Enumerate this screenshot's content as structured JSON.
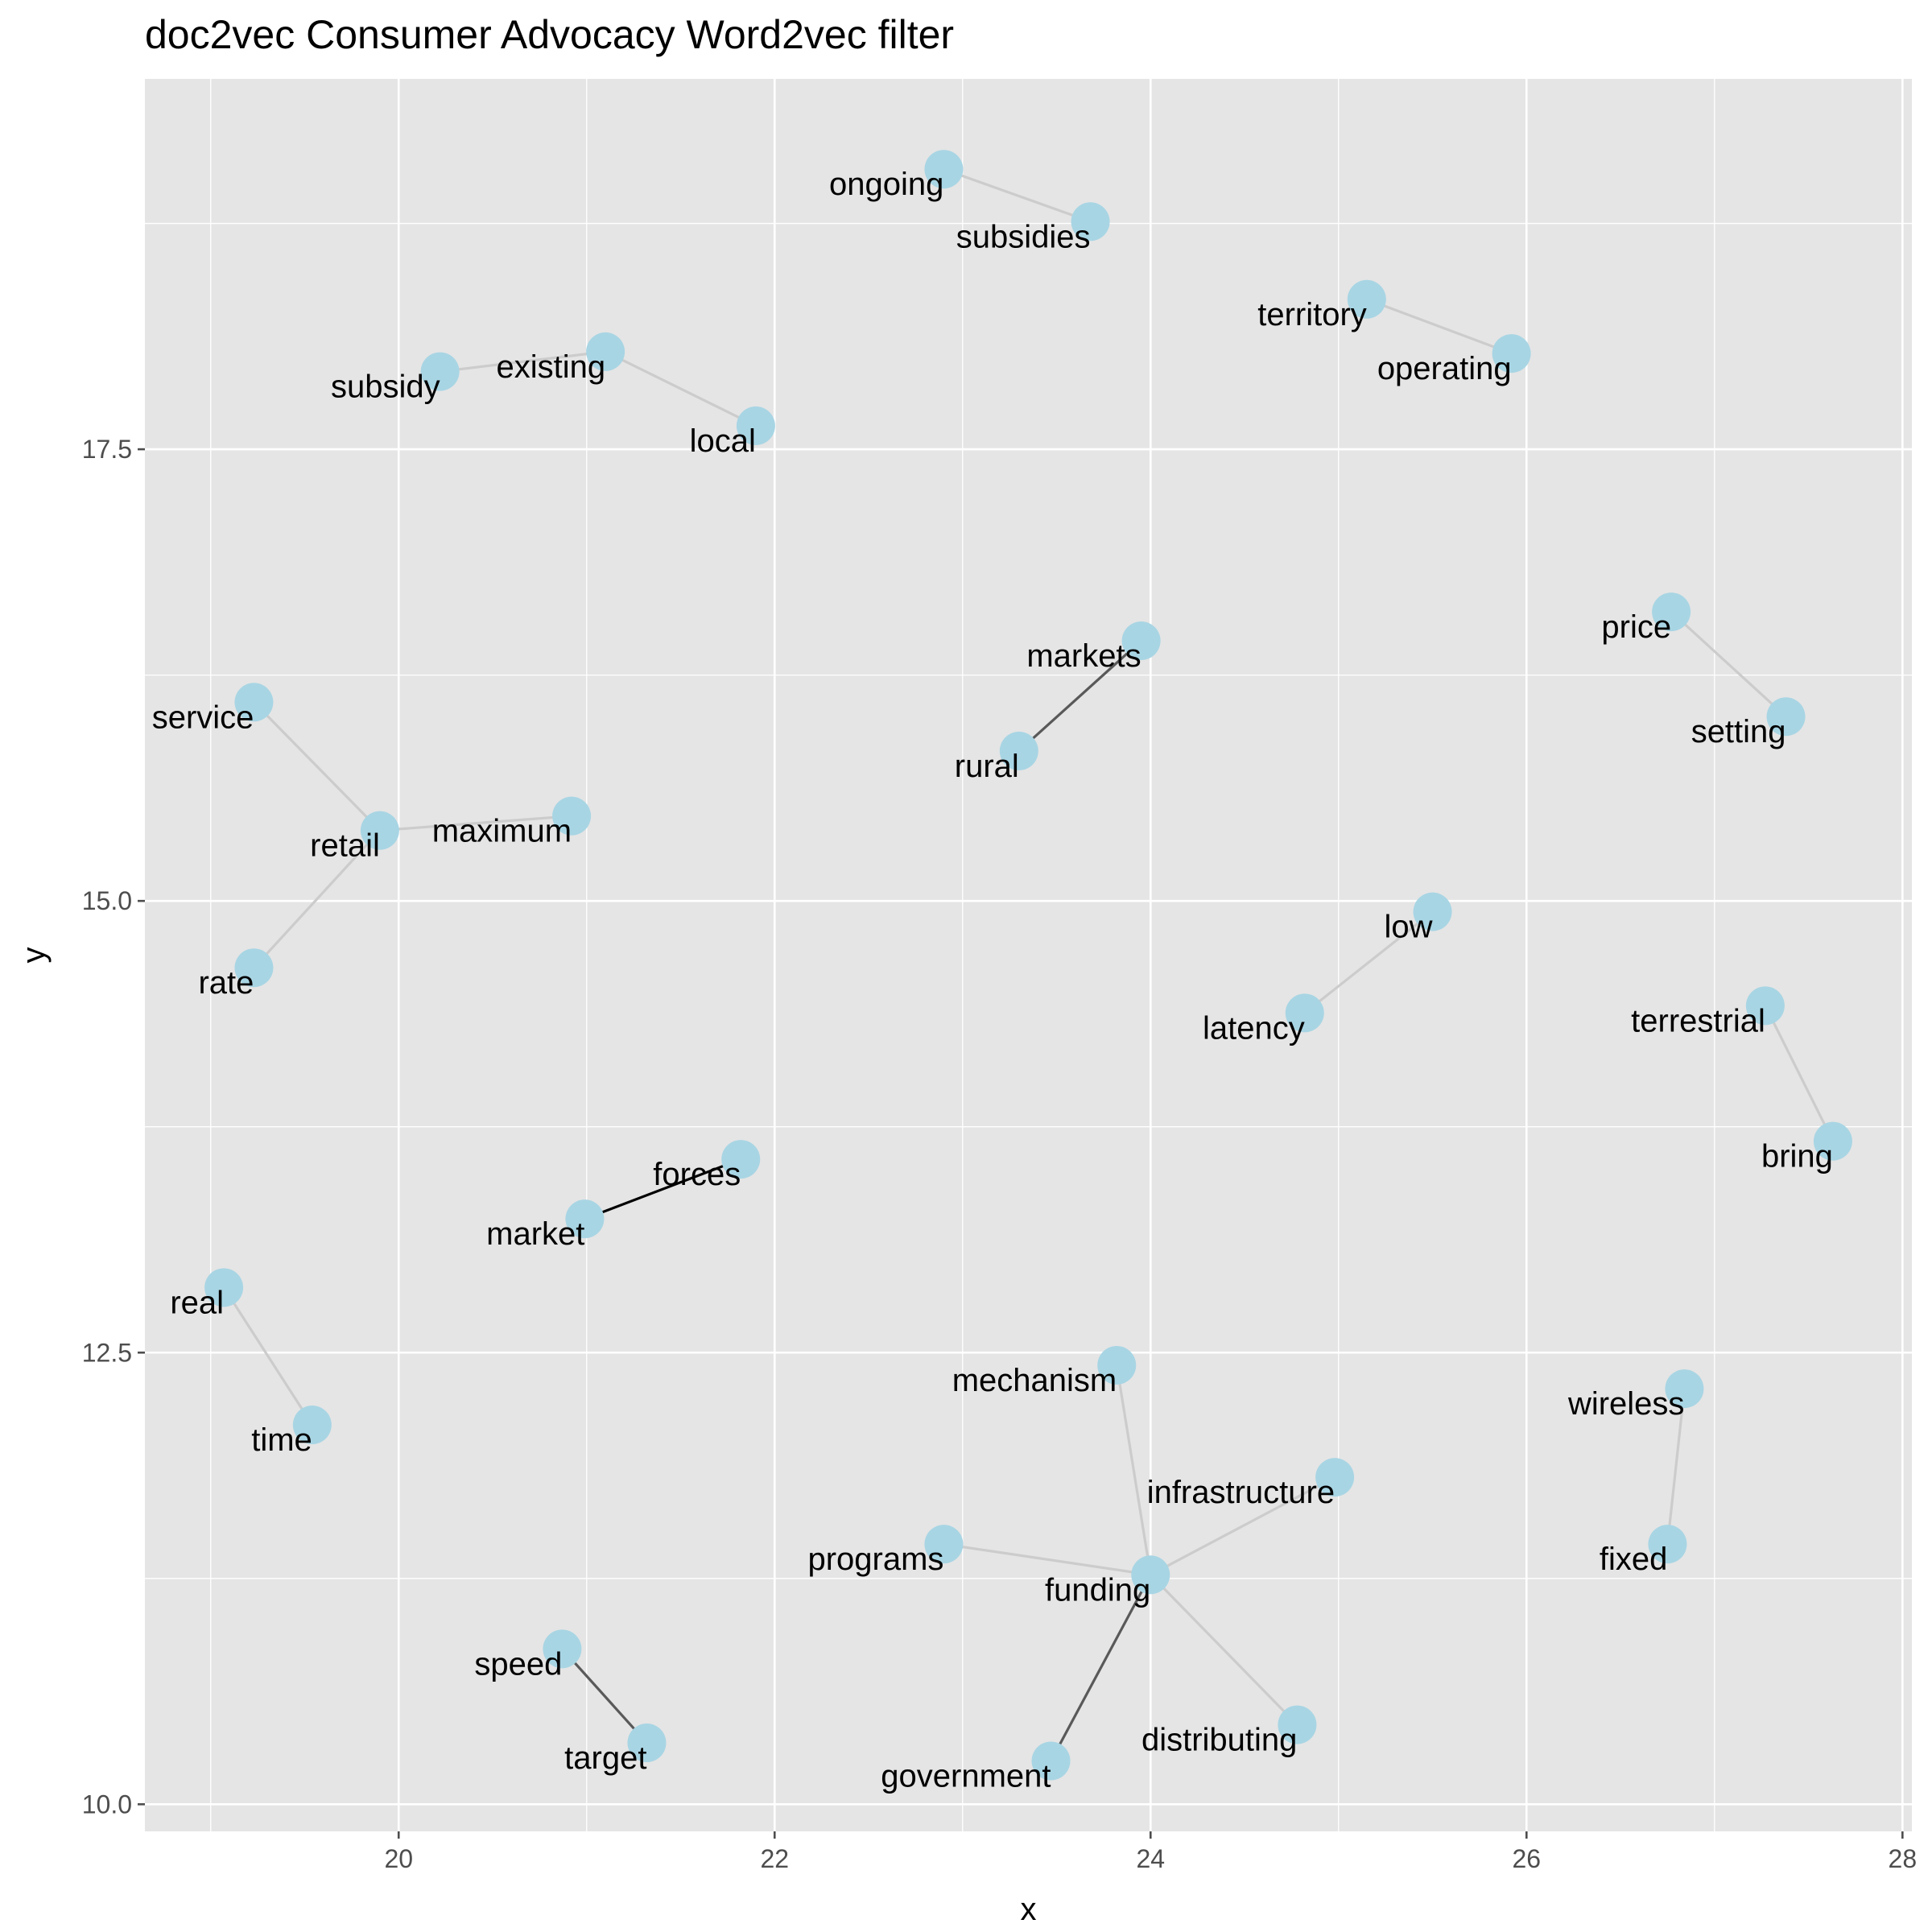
{
  "chart_data": {
    "type": "scatter",
    "title": "doc2vec Consumer Advocacy Word2vec filter",
    "xlabel": "x",
    "ylabel": "y",
    "xlim": [
      18.65,
      28.05
    ],
    "ylim": [
      9.85,
      19.55
    ],
    "x_ticks": [
      20,
      22,
      24,
      26,
      28
    ],
    "y_ticks": [
      10.0,
      12.5,
      15.0,
      17.5
    ],
    "x_tick_labels": [
      "20",
      "22",
      "24",
      "26",
      "28"
    ],
    "y_tick_labels": [
      "10.0",
      "12.5",
      "15.0",
      "17.5"
    ],
    "grid": true,
    "legend": "none",
    "colors": {
      "panel": "#e5e5e5",
      "grid": "#ffffff",
      "point": "#a8d5e4",
      "tick": "#4d4d4d"
    },
    "points": [
      {
        "label": "ongoing",
        "x": 22.9,
        "y": 19.05
      },
      {
        "label": "subsidies",
        "x": 23.68,
        "y": 18.76
      },
      {
        "label": "territory",
        "x": 25.15,
        "y": 18.33
      },
      {
        "label": "operating",
        "x": 25.92,
        "y": 18.03
      },
      {
        "label": "subsidy",
        "x": 20.22,
        "y": 17.93
      },
      {
        "label": "existing",
        "x": 21.1,
        "y": 18.04
      },
      {
        "label": "local",
        "x": 21.9,
        "y": 17.63
      },
      {
        "label": "markets",
        "x": 23.95,
        "y": 16.44
      },
      {
        "label": "rural",
        "x": 23.3,
        "y": 15.83
      },
      {
        "label": "price",
        "x": 26.77,
        "y": 16.6
      },
      {
        "label": "setting",
        "x": 27.38,
        "y": 16.02
      },
      {
        "label": "service",
        "x": 19.23,
        "y": 16.1
      },
      {
        "label": "retail",
        "x": 19.9,
        "y": 15.39
      },
      {
        "label": "maximum",
        "x": 20.92,
        "y": 15.47
      },
      {
        "label": "rate",
        "x": 19.23,
        "y": 14.63
      },
      {
        "label": "low",
        "x": 25.5,
        "y": 14.94
      },
      {
        "label": "latency",
        "x": 24.82,
        "y": 14.38
      },
      {
        "label": "terrestrial",
        "x": 27.27,
        "y": 14.42
      },
      {
        "label": "bring",
        "x": 27.63,
        "y": 13.67
      },
      {
        "label": "forces",
        "x": 21.82,
        "y": 13.57
      },
      {
        "label": "market",
        "x": 20.99,
        "y": 13.24
      },
      {
        "label": "real",
        "x": 19.07,
        "y": 12.86
      },
      {
        "label": "time",
        "x": 19.54,
        "y": 12.1
      },
      {
        "label": "mechanism",
        "x": 23.82,
        "y": 12.43
      },
      {
        "label": "wireless",
        "x": 26.84,
        "y": 12.3
      },
      {
        "label": "infrastructure",
        "x": 24.98,
        "y": 11.81
      },
      {
        "label": "fixed",
        "x": 26.75,
        "y": 11.44
      },
      {
        "label": "programs",
        "x": 22.9,
        "y": 11.44
      },
      {
        "label": "funding",
        "x": 24.0,
        "y": 11.27
      },
      {
        "label": "speed",
        "x": 20.87,
        "y": 10.86
      },
      {
        "label": "target",
        "x": 21.32,
        "y": 10.34
      },
      {
        "label": "distributing",
        "x": 24.78,
        "y": 10.44
      },
      {
        "label": "government",
        "x": 23.47,
        "y": 10.24
      }
    ],
    "edges": [
      {
        "from": "ongoing",
        "to": "subsidies",
        "color": "#cccccc"
      },
      {
        "from": "territory",
        "to": "operating",
        "color": "#cccccc"
      },
      {
        "from": "subsidy",
        "to": "existing",
        "color": "#cccccc"
      },
      {
        "from": "existing",
        "to": "local",
        "color": "#cccccc"
      },
      {
        "from": "rural",
        "to": "markets",
        "color": "#595959"
      },
      {
        "from": "price",
        "to": "setting",
        "color": "#cccccc"
      },
      {
        "from": "service",
        "to": "retail",
        "color": "#cccccc"
      },
      {
        "from": "retail",
        "to": "maximum",
        "color": "#cccccc"
      },
      {
        "from": "retail",
        "to": "rate",
        "color": "#cccccc"
      },
      {
        "from": "latency",
        "to": "low",
        "color": "#cccccc"
      },
      {
        "from": "terrestrial",
        "to": "bring",
        "color": "#cccccc"
      },
      {
        "from": "market",
        "to": "forces",
        "color": "#000000"
      },
      {
        "from": "real",
        "to": "time",
        "color": "#cccccc"
      },
      {
        "from": "wireless",
        "to": "fixed",
        "color": "#cccccc"
      },
      {
        "from": "mechanism",
        "to": "funding",
        "color": "#cccccc"
      },
      {
        "from": "infrastructure",
        "to": "funding",
        "color": "#cccccc"
      },
      {
        "from": "programs",
        "to": "funding",
        "color": "#cccccc"
      },
      {
        "from": "funding",
        "to": "distributing",
        "color": "#cccccc"
      },
      {
        "from": "funding",
        "to": "government",
        "color": "#595959"
      },
      {
        "from": "speed",
        "to": "target",
        "color": "#595959"
      }
    ]
  }
}
